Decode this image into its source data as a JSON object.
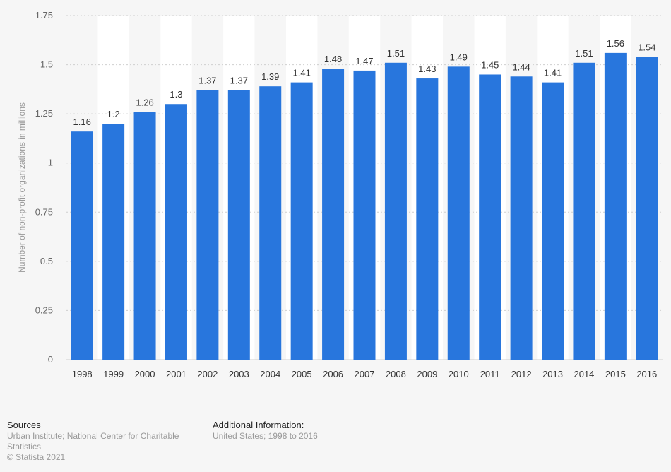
{
  "chart_data": {
    "type": "bar",
    "title": "",
    "xlabel": "",
    "ylabel": "Number of non-profit organizations in millions",
    "ylim": [
      0,
      1.75
    ],
    "yticks": [
      0,
      0.25,
      0.5,
      0.75,
      1,
      1.25,
      1.5,
      1.75
    ],
    "ytick_labels": [
      "0",
      "0.25",
      "0.5",
      "0.75",
      "1",
      "1.25",
      "1.5",
      "1.75"
    ],
    "grid": true,
    "categories": [
      "1998",
      "1999",
      "2000",
      "2001",
      "2002",
      "2003",
      "2004",
      "2005",
      "2006",
      "2007",
      "2008",
      "2009",
      "2010",
      "2011",
      "2012",
      "2013",
      "2014",
      "2015",
      "2016"
    ],
    "values": [
      1.16,
      1.2,
      1.26,
      1.3,
      1.37,
      1.37,
      1.39,
      1.41,
      1.48,
      1.47,
      1.51,
      1.43,
      1.49,
      1.45,
      1.44,
      1.41,
      1.51,
      1.56,
      1.54
    ],
    "value_labels": [
      "1.16",
      "1.2",
      "1.26",
      "1.3",
      "1.37",
      "1.37",
      "1.39",
      "1.41",
      "1.48",
      "1.47",
      "1.51",
      "1.43",
      "1.49",
      "1.45",
      "1.44",
      "1.41",
      "1.51",
      "1.56",
      "1.54"
    ],
    "bar_color": "#2876dd"
  },
  "colors": {
    "background": "#f6f6f6",
    "band": "#ffffff",
    "grid": "#cfcfcf",
    "axis_text": "#666666",
    "label_text": "#333333"
  },
  "footer": {
    "sources_title": "Sources",
    "sources_text": "Urban Institute; National Center for Charitable Statistics",
    "copyright": "© Statista 2021",
    "additional_title": "Additional Information:",
    "additional_text": "United States; 1998 to 2016"
  }
}
